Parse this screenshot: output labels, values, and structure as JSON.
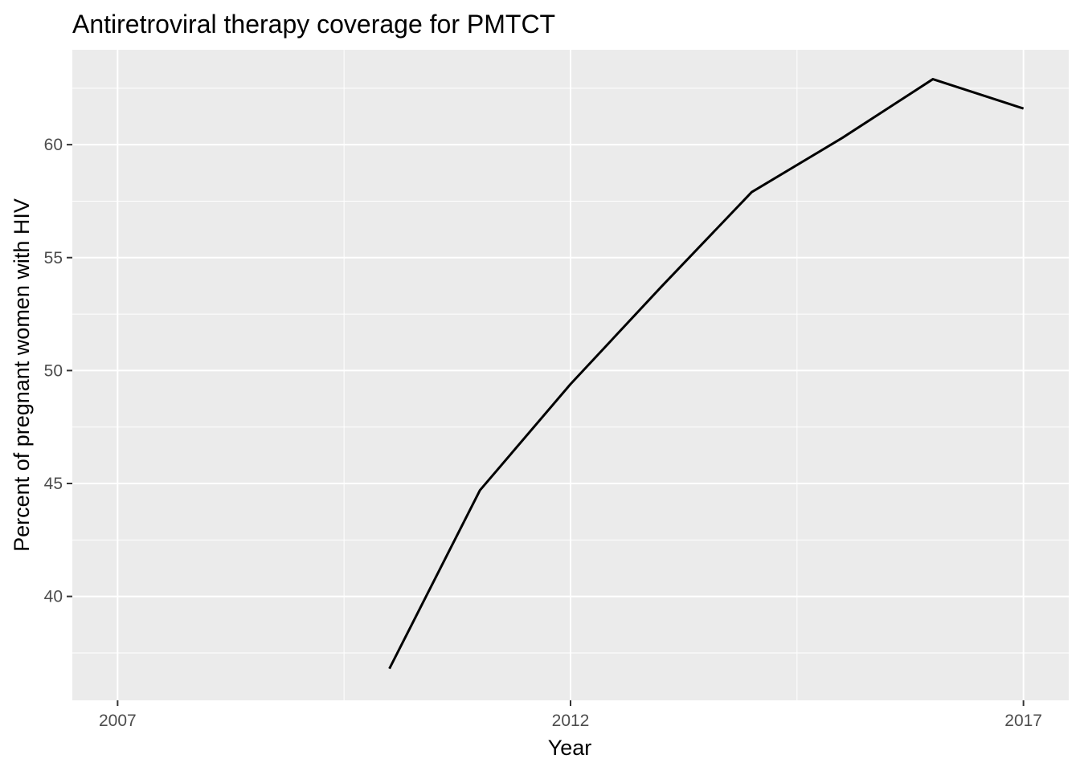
{
  "chart_data": {
    "type": "line",
    "title": "Antiretroviral therapy coverage for PMTCT",
    "xlabel": "Year",
    "ylabel": "Percent of pregnant women with HIV",
    "xlim": [
      2006.5,
      2017.5
    ],
    "ylim": [
      35.4,
      64.2
    ],
    "x_ticks": [
      2007,
      2012,
      2017
    ],
    "x_tick_labels": [
      "2007",
      "2012",
      "2017"
    ],
    "y_ticks": [
      40,
      45,
      50,
      55,
      60
    ],
    "y_tick_labels": [
      "40",
      "45",
      "50",
      "55",
      "60"
    ],
    "grid": true,
    "legend": "none",
    "series": [
      {
        "color": "#000000",
        "x": [
          2010,
          2011,
          2012,
          2013,
          2014,
          2015,
          2016,
          2017
        ],
        "y": [
          36.8,
          44.7,
          49.4,
          53.7,
          57.9,
          60.3,
          62.9,
          61.6
        ]
      }
    ]
  },
  "colors": {
    "panel_background": "#ebebeb",
    "grid": "#ffffff",
    "line": "#000000",
    "tick_text": "#4d4d4d"
  }
}
